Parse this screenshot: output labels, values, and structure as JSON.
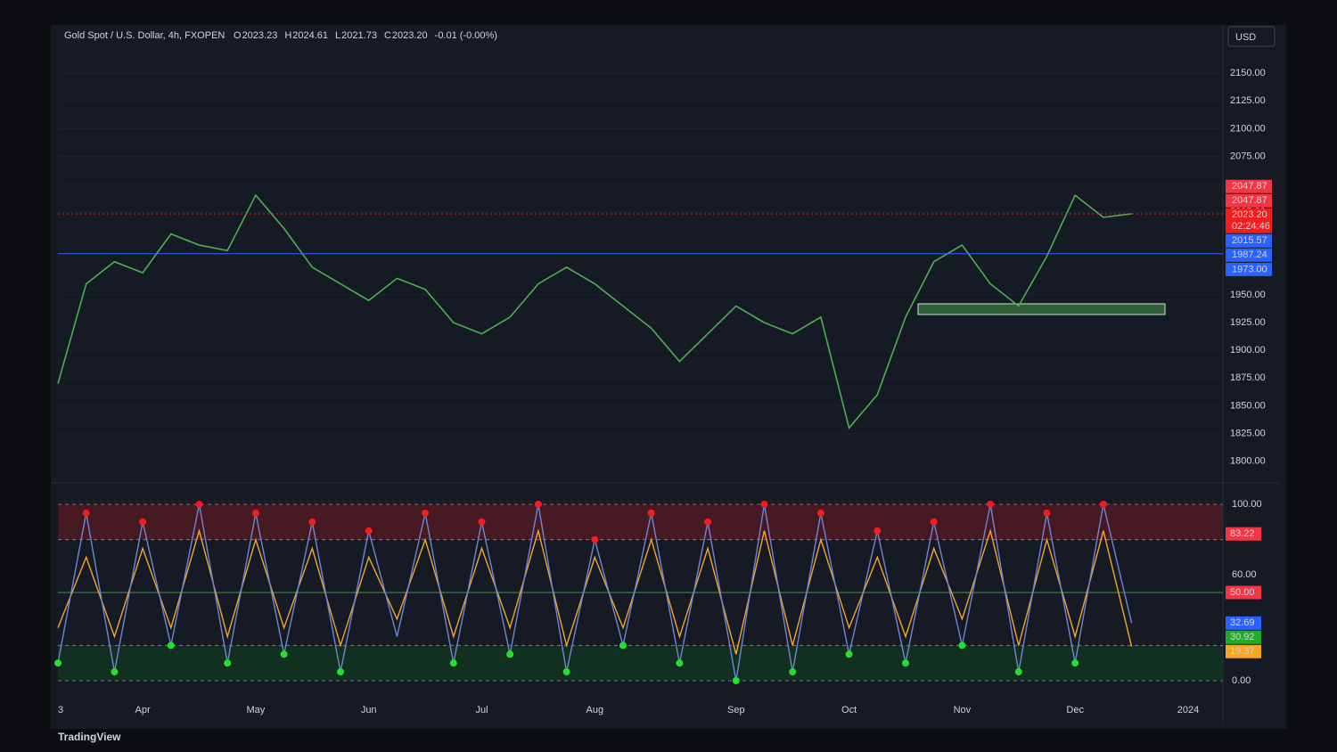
{
  "header": {
    "symbol": "Gold Spot / U.S. Dollar, 4h, FXOPEN",
    "o_label": "O",
    "o": "2023.23",
    "h_label": "H",
    "h": "2024.61",
    "l_label": "L",
    "l": "2021.73",
    "c_label": "C",
    "c": "2023.20",
    "change": "-0.01 (-0.00%)",
    "currency": "USD",
    "brand": "TradingView"
  },
  "chart_data": [
    {
      "type": "line",
      "color": "#4caf50",
      "categories": [
        "3",
        null,
        null,
        "Apr",
        null,
        null,
        null,
        "May",
        null,
        null,
        null,
        "Jun",
        null,
        null,
        null,
        "Jul",
        null,
        null,
        null,
        "Aug",
        null,
        null,
        null,
        null,
        "Sep",
        null,
        null,
        null,
        "Oct",
        null,
        null,
        null,
        "Nov",
        null,
        null,
        null,
        "Dec",
        null,
        null,
        null,
        "2024",
        null
      ],
      "values": [
        1870,
        1960,
        1980,
        1970,
        2005,
        1995,
        1990,
        2040,
        2010,
        1975,
        1960,
        1945,
        1965,
        1955,
        1925,
        1915,
        1930,
        1960,
        1975,
        1960,
        1940,
        1920,
        1890,
        1915,
        1940,
        1925,
        1915,
        1930,
        1830,
        1860,
        1930,
        1980,
        1995,
        1960,
        1940,
        1985,
        2040,
        2020,
        2023.2,
        null,
        null,
        null
      ],
      "ylim": [
        1782,
        2192
      ],
      "yticks": [
        {
          "value": 1800,
          "label": "1800.00"
        },
        {
          "value": 1825,
          "label": "1825.00"
        },
        {
          "value": 1850,
          "label": "1850.00"
        },
        {
          "value": 1875,
          "label": "1875.00"
        },
        {
          "value": 1900,
          "label": "1900.00"
        },
        {
          "value": 1925,
          "label": "1925.00"
        },
        {
          "value": 1950,
          "label": "1950.00"
        },
        {
          "value": 1975,
          "label": "1975.00"
        },
        {
          "value": 2000,
          "label": "2000.00"
        },
        {
          "value": 2025,
          "label": "2025.00"
        },
        {
          "value": 2050,
          "label": "2050.00"
        },
        {
          "value": 2075,
          "label": "2075.00"
        },
        {
          "value": 2100,
          "label": "2100.00"
        },
        {
          "value": 2125,
          "label": "2125.00"
        },
        {
          "value": 2150,
          "label": "2150.00"
        }
      ],
      "price_labels": [
        {
          "value": 2047.87,
          "label": "2047.87",
          "color": "#f23645"
        },
        {
          "value": 2047.87,
          "label": "2047.87",
          "color": "#f23645"
        },
        {
          "value": 2023.2,
          "label": "2023.20",
          "color": "#f21d1d"
        },
        {
          "value": 2015.57,
          "label": "2015.57",
          "color": "#2962ff"
        },
        {
          "value": 1987.24,
          "label": "1987.24",
          "color": "#2962ff"
        },
        {
          "value": 1973,
          "label": "1973.00",
          "color": "#2962ff"
        }
      ],
      "countdown": "02:24:46"
    },
    {
      "type": "line",
      "series": [
        {
          "color": "#6f86d6",
          "values": [
            10,
            95,
            5,
            90,
            20,
            100,
            10,
            95,
            15,
            90,
            5,
            85,
            25,
            95,
            10,
            90,
            15,
            100,
            5,
            80,
            20,
            95,
            10,
            90,
            0,
            100,
            5,
            95,
            15,
            85,
            10,
            90,
            20,
            100,
            5,
            95,
            10,
            100,
            32.69,
            null,
            null,
            null
          ]
        },
        {
          "color": "#f5a623",
          "values": [
            30,
            70,
            25,
            75,
            30,
            85,
            25,
            80,
            30,
            75,
            20,
            70,
            35,
            80,
            25,
            75,
            30,
            85,
            20,
            70,
            30,
            80,
            25,
            75,
            15,
            85,
            20,
            80,
            30,
            70,
            25,
            75,
            35,
            85,
            20,
            80,
            25,
            85,
            19.37,
            null,
            null,
            null
          ]
        }
      ],
      "ylim": [
        -10.6,
        110.6
      ],
      "yticks": [
        {
          "value": 0,
          "label": "0.00"
        },
        {
          "value": 60,
          "label": "60.00"
        },
        {
          "value": 100,
          "label": "100.00"
        }
      ],
      "levels": [
        80,
        50,
        20
      ],
      "value_markers": [
        {
          "value": 83.22,
          "label": "83.22",
          "color": "#f23645"
        },
        {
          "value": 50,
          "label": "50.00",
          "color": "#f23645"
        },
        {
          "value": 32.69,
          "label": "32.69",
          "color": "#2962ff"
        },
        {
          "value": 30.92,
          "label": "30.92",
          "color": "#22ab2b"
        },
        {
          "value": 19.37,
          "label": "19.37",
          "color": "#f5a623"
        }
      ]
    }
  ]
}
